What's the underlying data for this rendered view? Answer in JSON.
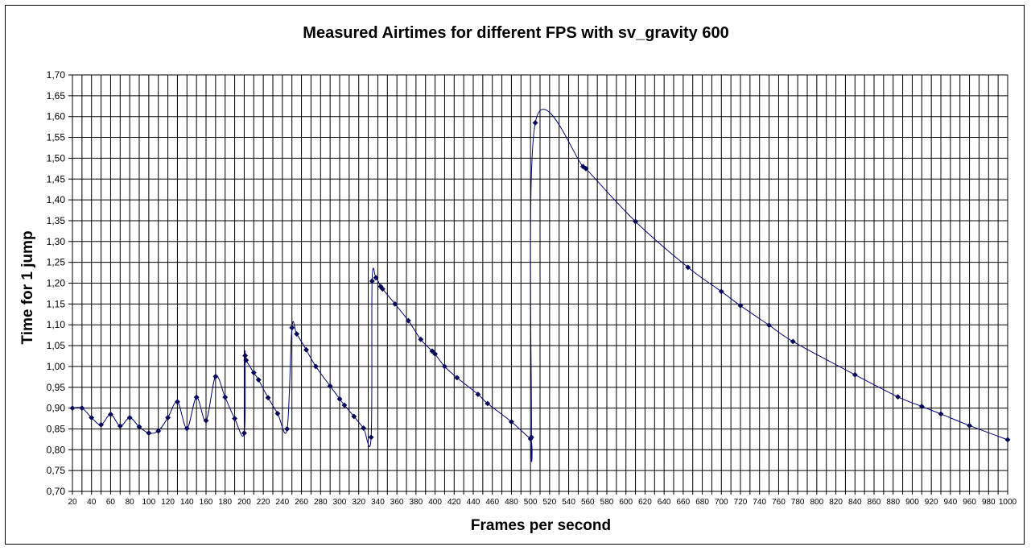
{
  "chart_data": {
    "type": "line",
    "title": "Measured Airtimes for different FPS with sv_gravity 600",
    "xlabel": "Frames per second",
    "ylabel": "Time for 1 jump",
    "xlim": [
      20,
      1000
    ],
    "ylim": [
      0.7,
      1.7
    ],
    "grid": true,
    "legend": "none",
    "line_color": "#00007F",
    "marker_color": "#0A0A5A",
    "decimal_separator": ",",
    "x_ticks": [
      20,
      30,
      40,
      50,
      60,
      70,
      80,
      90,
      100,
      110,
      120,
      130,
      140,
      150,
      160,
      170,
      180,
      190,
      200,
      210,
      220,
      230,
      240,
      250,
      260,
      270,
      280,
      290,
      300,
      310,
      320,
      330,
      340,
      350,
      360,
      370,
      380,
      390,
      400,
      410,
      420,
      430,
      440,
      450,
      460,
      470,
      480,
      490,
      500,
      510,
      520,
      530,
      540,
      550,
      560,
      570,
      580,
      590,
      600,
      610,
      620,
      630,
      640,
      650,
      660,
      670,
      680,
      690,
      700,
      710,
      720,
      730,
      740,
      750,
      760,
      770,
      780,
      790,
      800,
      810,
      820,
      830,
      840,
      850,
      860,
      870,
      880,
      890,
      900,
      910,
      920,
      930,
      940,
      950,
      960,
      970,
      980,
      990,
      1000
    ],
    "x_tick_labels": [
      "20",
      "40",
      "60",
      "80",
      "100",
      "120",
      "140",
      "160",
      "180",
      "200",
      "220",
      "240",
      "260",
      "280",
      "300",
      "320",
      "340",
      "360",
      "380",
      "400",
      "420",
      "440",
      "460",
      "480",
      "500",
      "520",
      "540",
      "560",
      "580",
      "600",
      "620",
      "640",
      "660",
      "680",
      "700",
      "720",
      "740",
      "760",
      "780",
      "800",
      "820",
      "840",
      "860",
      "880",
      "900",
      "920",
      "940",
      "960",
      "980",
      "1000"
    ],
    "y_ticks": [
      "0,70",
      "0,75",
      "0,80",
      "0,85",
      "0,90",
      "0,95",
      "1,00",
      "1,05",
      "1,10",
      "1,15",
      "1,20",
      "1,25",
      "1,30",
      "1,35",
      "1,40",
      "1,45",
      "1,50",
      "1,55",
      "1,60",
      "1,65",
      "1,70"
    ],
    "series": [
      {
        "x": [
          20,
          30,
          40,
          50,
          60,
          70,
          80,
          90,
          100,
          110,
          120,
          130,
          140,
          150,
          160,
          170,
          180,
          190,
          200,
          201,
          202,
          210,
          215,
          225,
          235,
          245,
          250,
          255,
          265,
          275,
          290,
          300,
          305,
          315,
          325,
          333,
          334,
          338,
          343,
          345,
          358,
          372,
          385,
          397,
          400,
          410,
          423,
          445,
          455,
          480,
          500,
          501,
          505,
          555,
          558,
          610,
          665,
          700,
          720,
          750,
          775,
          840,
          885,
          910,
          930,
          960,
          1000
        ],
        "y": [
          0.9,
          0.9,
          0.877,
          0.86,
          0.885,
          0.857,
          0.877,
          0.855,
          0.84,
          0.845,
          0.877,
          0.915,
          0.851,
          0.926,
          0.87,
          0.976,
          0.926,
          0.875,
          0.84,
          1.026,
          1.015,
          0.985,
          0.968,
          0.925,
          0.887,
          0.85,
          1.093,
          1.078,
          1.04,
          1.0,
          0.953,
          0.922,
          0.907,
          0.88,
          0.852,
          0.83,
          1.205,
          1.213,
          1.192,
          1.186,
          1.15,
          1.11,
          1.065,
          1.037,
          1.03,
          1.0,
          0.973,
          0.933,
          0.911,
          0.867,
          0.826,
          0.83,
          1.585,
          1.48,
          1.475,
          1.348,
          1.238,
          1.18,
          1.146,
          1.099,
          1.06,
          0.98,
          0.927,
          0.904,
          0.886,
          0.858,
          0.824
        ]
      }
    ]
  }
}
